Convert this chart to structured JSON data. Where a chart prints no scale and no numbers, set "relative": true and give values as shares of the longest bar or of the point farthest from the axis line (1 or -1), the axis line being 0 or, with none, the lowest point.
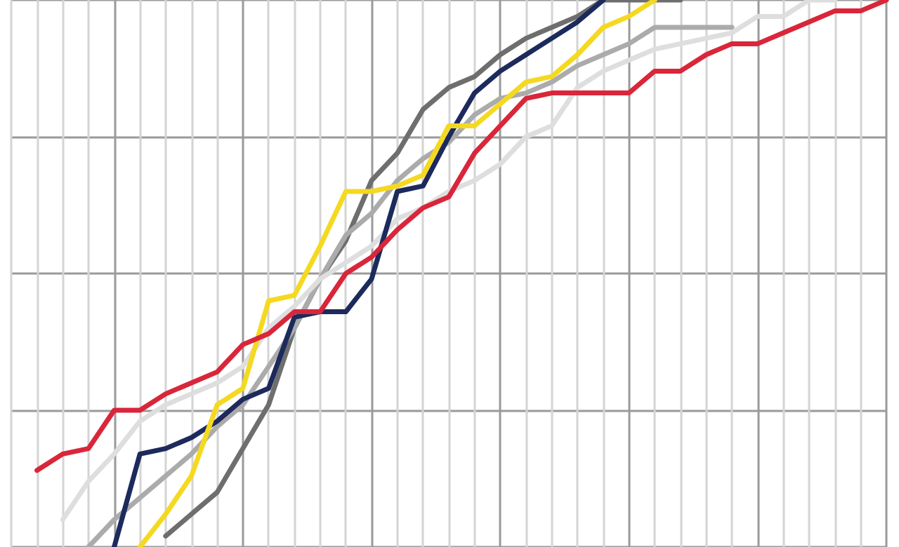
{
  "chart_data": {
    "type": "line",
    "relative": true,
    "grid": true,
    "categories": [
      null,
      null,
      null,
      null,
      null,
      null,
      null,
      null,
      null,
      null,
      null,
      null,
      null,
      null,
      null,
      null,
      null,
      null,
      null,
      null,
      null,
      null,
      null,
      null,
      null,
      null,
      null,
      null,
      null,
      null,
      null,
      null,
      null,
      null,
      null
    ],
    "series": [
      {
        "color": "#6e6e6e",
        "values": [
          null,
          null,
          null,
          null,
          null,
          null,
          0.02,
          0.06,
          0.1,
          0.18,
          0.26,
          0.4,
          0.49,
          0.56,
          0.67,
          0.72,
          0.8,
          0.84,
          0.86,
          0.9,
          0.93,
          0.95,
          0.97,
          1,
          1,
          1,
          1,
          null,
          null,
          null,
          null,
          null,
          null,
          null,
          null
        ]
      },
      {
        "color": "#ababab",
        "values": [
          null,
          null,
          null,
          0,
          0.05,
          0.09,
          0.13,
          0.17,
          0.22,
          0.26,
          0.33,
          0.4,
          0.49,
          0.57,
          0.61,
          0.67,
          0.71,
          0.74,
          0.79,
          0.82,
          0.83,
          0.85,
          0.88,
          0.9,
          0.92,
          0.95,
          0.95,
          0.95,
          0.95,
          null,
          null,
          null,
          null,
          null,
          null
        ]
      },
      {
        "color": "#dedede",
        "values": [
          null,
          null,
          0.05,
          0.12,
          0.17,
          0.23,
          0.26,
          0.28,
          0.3,
          0.33,
          0.4,
          0.44,
          0.49,
          0.52,
          0.55,
          0.6,
          0.62,
          0.65,
          0.67,
          0.7,
          0.75,
          0.77,
          0.84,
          0.87,
          0.89,
          0.91,
          0.92,
          0.93,
          0.94,
          0.97,
          0.97,
          1,
          1,
          null,
          null
        ]
      },
      {
        "color": "#1c2a5c",
        "values": [
          null,
          null,
          null,
          null,
          0,
          0.17,
          0.18,
          0.2,
          0.23,
          0.27,
          0.29,
          0.42,
          0.43,
          0.43,
          0.49,
          0.65,
          0.66,
          0.75,
          0.83,
          0.87,
          0.9,
          0.93,
          0.96,
          1,
          null,
          null,
          null,
          null,
          null,
          null,
          null,
          null,
          null,
          null,
          null
        ]
      },
      {
        "color": "#f5d920",
        "values": [
          null,
          null,
          null,
          null,
          null,
          0,
          0.06,
          0.13,
          0.26,
          0.29,
          0.45,
          0.46,
          0.55,
          0.65,
          0.65,
          0.66,
          0.68,
          0.77,
          0.77,
          0.81,
          0.85,
          0.86,
          0.9,
          0.95,
          0.97,
          1,
          null,
          null,
          null,
          null,
          null,
          null,
          null,
          null,
          null
        ]
      },
      {
        "color": "#d9263a",
        "values": [
          null,
          0.14,
          0.17,
          0.18,
          0.25,
          0.25,
          0.28,
          0.3,
          0.32,
          0.37,
          0.39,
          0.43,
          0.43,
          0.5,
          0.53,
          0.58,
          0.62,
          0.64,
          0.72,
          0.77,
          0.82,
          0.83,
          0.83,
          0.83,
          0.83,
          0.87,
          0.87,
          0.9,
          0.92,
          0.92,
          0.94,
          0.96,
          0.98,
          0.98,
          1
        ]
      }
    ]
  }
}
